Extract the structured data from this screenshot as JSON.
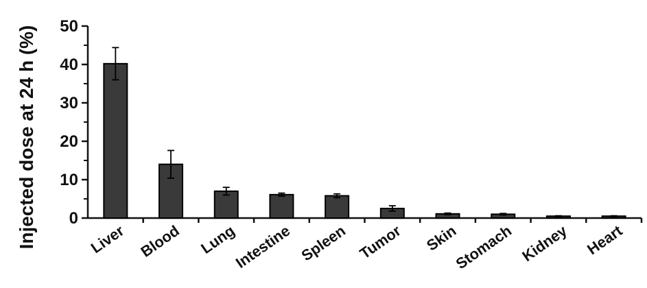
{
  "chart_data": {
    "type": "bar",
    "title": "",
    "xlabel": "",
    "ylabel": "Injected dose at 24 h (%)",
    "ylim": [
      0,
      50
    ],
    "yticks": [
      "0",
      "10",
      "20",
      "30",
      "40",
      "50"
    ],
    "categories": [
      "Liver",
      "Blood",
      "Lung",
      "Intestine",
      "Spleen",
      "Tumor",
      "Skin",
      "Stomach",
      "Kidney",
      "Heart"
    ],
    "values": [
      40.2,
      14.0,
      7.0,
      6.1,
      5.8,
      2.5,
      1.1,
      1.0,
      0.5,
      0.5
    ],
    "errors": [
      4.2,
      3.6,
      1.0,
      0.4,
      0.5,
      0.7,
      0.2,
      0.2,
      0.1,
      0.1
    ],
    "bar_color": "#3a3a3a",
    "grid": false,
    "legend": "none"
  }
}
